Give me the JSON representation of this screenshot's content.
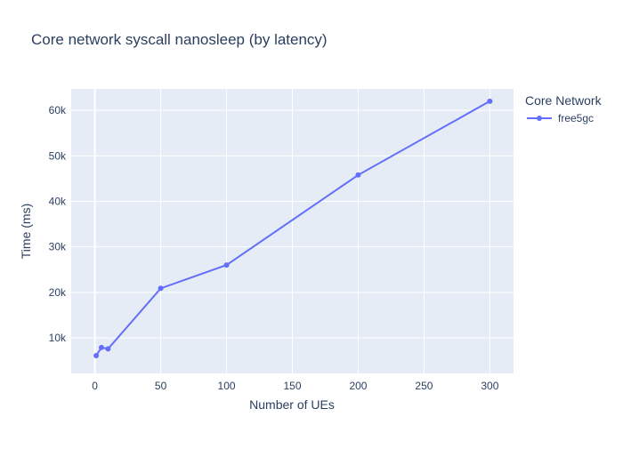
{
  "chart_data": {
    "type": "line",
    "title": "Core network syscall nanosleep (by latency)",
    "xlabel": "Number of UEs",
    "ylabel": "Time (ms)",
    "xlim": [
      -18,
      318
    ],
    "ylim": [
      2200,
      64700
    ],
    "x_ticks": [
      0,
      50,
      100,
      150,
      200,
      250,
      300
    ],
    "x_tick_labels": [
      "0",
      "50",
      "100",
      "150",
      "200",
      "250",
      "300"
    ],
    "y_ticks": [
      10000,
      20000,
      30000,
      40000,
      50000,
      60000
    ],
    "y_tick_labels": [
      "10k",
      "20k",
      "30k",
      "40k",
      "50k",
      "60k"
    ],
    "grid": true,
    "legend": {
      "title": "Core Network",
      "placement": "top-right outside"
    },
    "series": [
      {
        "name": "free5gc",
        "color": "#636efa",
        "x": [
          1,
          5,
          10,
          50,
          100,
          200,
          300
        ],
        "y": [
          6100,
          7900,
          7600,
          20900,
          26000,
          45800,
          62000
        ]
      }
    ],
    "colors": {
      "plot_background": "#e5ecf6",
      "grid": "#ffffff",
      "text": "#2a3f5f"
    }
  }
}
